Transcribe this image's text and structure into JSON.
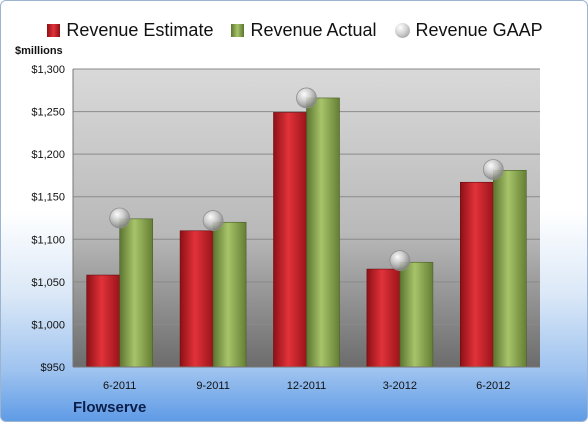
{
  "legend": {
    "estimate": "Revenue Estimate",
    "actual": "Revenue Actual",
    "gaap": "Revenue GAAP"
  },
  "unit_label": "$millions",
  "company": "Flowserve",
  "colors": {
    "estimate": "#d2232b",
    "actual": "#8fae52",
    "gaap": "#c8c8c8",
    "plot_top": "#d6d6d6",
    "plot_bottom": "#6f6f6f"
  },
  "chart_data": {
    "type": "bar",
    "categories": [
      "6-2011",
      "9-2011",
      "12-2011",
      "3-2012",
      "6-2012"
    ],
    "series": [
      {
        "name": "Revenue Estimate",
        "values": [
          1058,
          1110,
          1249,
          1065,
          1167
        ]
      },
      {
        "name": "Revenue Actual",
        "values": [
          1124,
          1120,
          1266,
          1073,
          1181
        ]
      },
      {
        "name": "Revenue GAAP",
        "values": [
          1125,
          1122,
          1266,
          1075,
          1182
        ]
      }
    ],
    "yticks": [
      "$950",
      "$1,000",
      "$1,050",
      "$1,100",
      "$1,150",
      "$1,200",
      "$1,250",
      "$1,300"
    ],
    "ylim": [
      950,
      1300
    ],
    "ylabel": "$millions",
    "grid": true,
    "legend_position": "top"
  }
}
